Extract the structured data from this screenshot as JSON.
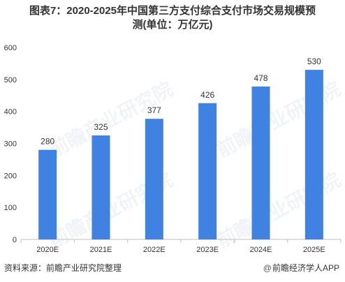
{
  "title_line1": "图表7：2020-2025年中国第三方支付综合支付市场交易规模预",
  "title_line2": "测(单位：万亿元)",
  "source": "资料来源：前瞻产业研究院整理",
  "brand": "前瞻经济学人APP",
  "brand_icon": "at-sign-icon",
  "watermark": "前瞻产业研究院",
  "colors": {
    "bar": "#3f82e2",
    "axis": "#bfbfbf",
    "text": "#333333"
  },
  "chart_data": {
    "type": "bar",
    "categories": [
      "2020E",
      "2021E",
      "2022E",
      "2023E",
      "2024E",
      "2025E"
    ],
    "values": [
      280,
      325,
      377,
      426,
      478,
      530
    ],
    "ylim": [
      0,
      600
    ],
    "yticks": [
      "0",
      "100",
      "200",
      "300",
      "400",
      "500",
      "600"
    ],
    "grid": false,
    "legend": "none"
  }
}
